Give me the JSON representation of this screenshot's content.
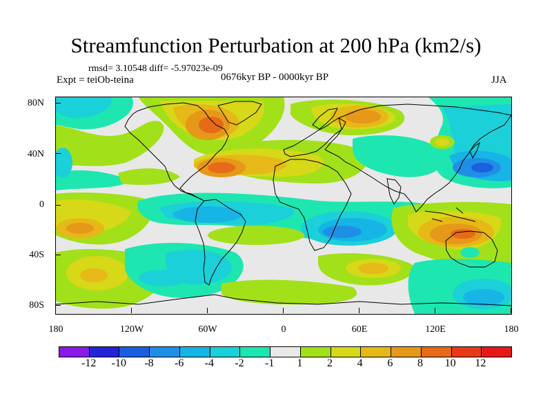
{
  "title": "Streamfunction Perturbation at 200 hPa (km2/s)",
  "stats": "rmsd= 3.10548 diff= -5.97023e-09",
  "experiment": "Expt = teiOb-teina",
  "period": "0676kyr BP - 0000kyr BP",
  "season": "JJA",
  "axes": {
    "y_labels": [
      "80N",
      "40N",
      "0",
      "40S",
      "80S"
    ],
    "x_labels": [
      "180",
      "120W",
      "60W",
      "0",
      "60E",
      "120E",
      "180"
    ]
  },
  "colorbar": {
    "labels": [
      "-12",
      "-10",
      "-8",
      "-6",
      "-4",
      "-2",
      "-1",
      "1",
      "2",
      "4",
      "6",
      "8",
      "10",
      "12"
    ],
    "colors": [
      "#8a1ae6",
      "#2323d8",
      "#1a5fe0",
      "#1f8fe6",
      "#17b4e6",
      "#1bd0d8",
      "#1ee6b0",
      "#e8e8e8",
      "#a2e01a",
      "#d6d818",
      "#e6b818",
      "#e69818",
      "#e66a18",
      "#e63a18",
      "#e61818"
    ]
  },
  "map_colors": {
    "neutral": "#e8e8e8",
    "pos1": "#a2e01a",
    "pos2": "#d6d818",
    "pos3": "#e6b818",
    "pos4": "#e69818",
    "pos5": "#e66a18",
    "neg1": "#1ee6b0",
    "neg2": "#1bd0d8",
    "neg3": "#17b4e6",
    "neg4": "#1f8fe6",
    "neg5": "#1a5fe0",
    "coast": "#000000"
  }
}
